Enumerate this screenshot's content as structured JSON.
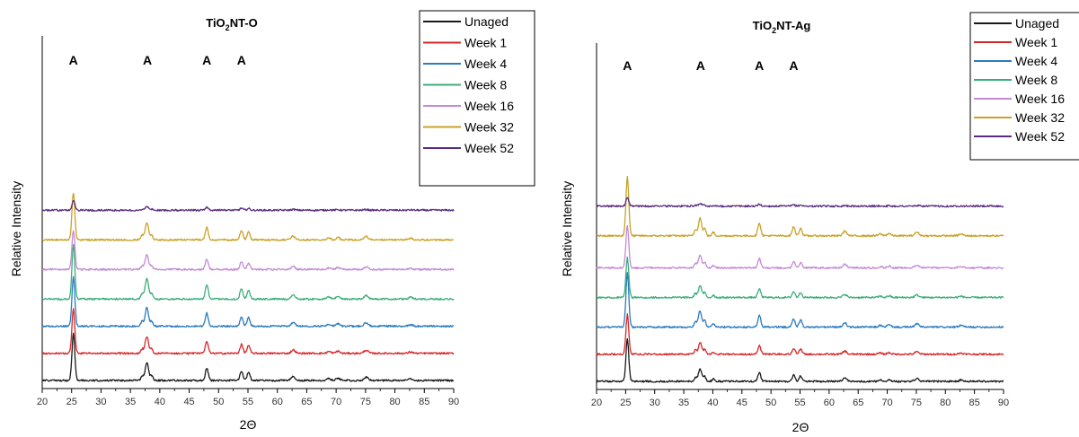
{
  "chart_data": [
    {
      "type": "line",
      "title": {
        "main": "TiO",
        "sub": "2",
        "rest": "NT-O"
      },
      "xlabel": "2Θ",
      "ylabel": "Relative Intensity",
      "xlim": [
        20,
        90
      ],
      "xticks": [
        20,
        25,
        30,
        35,
        40,
        45,
        50,
        55,
        60,
        65,
        70,
        75,
        80,
        85,
        90
      ],
      "grid": false,
      "legend_position": "top-right",
      "peak_labels": [
        {
          "text": "A",
          "x": 25.3
        },
        {
          "text": "A",
          "x": 37.9
        },
        {
          "text": "A",
          "x": 48.0
        },
        {
          "text": "A",
          "x": 53.9
        }
      ],
      "peaks": [
        {
          "x": 25.3,
          "h": 1.0,
          "w": 0.35
        },
        {
          "x": 37.0,
          "h": 0.1,
          "w": 0.3
        },
        {
          "x": 37.8,
          "h": 0.38,
          "w": 0.4
        },
        {
          "x": 38.6,
          "h": 0.1,
          "w": 0.3
        },
        {
          "x": 48.0,
          "h": 0.26,
          "w": 0.35
        },
        {
          "x": 53.9,
          "h": 0.2,
          "w": 0.35
        },
        {
          "x": 55.1,
          "h": 0.17,
          "w": 0.35
        },
        {
          "x": 62.7,
          "h": 0.08,
          "w": 0.45
        },
        {
          "x": 68.8,
          "h": 0.04,
          "w": 0.45
        },
        {
          "x": 70.3,
          "h": 0.05,
          "w": 0.45
        },
        {
          "x": 75.1,
          "h": 0.07,
          "w": 0.5
        },
        {
          "x": 82.7,
          "h": 0.03,
          "w": 0.5
        }
      ],
      "series": [
        {
          "name": "Unaged",
          "color": "#1a1a1a",
          "offset": 0.0,
          "scale": 0.95
        },
        {
          "name": "Week 1",
          "color": "#d62728",
          "offset": 0.55,
          "scale": 0.9
        },
        {
          "name": "Week 4",
          "color": "#2b7bbf",
          "offset": 1.1,
          "scale": 1.0
        },
        {
          "name": "Week 8",
          "color": "#3cae7a",
          "offset": 1.65,
          "scale": 1.1
        },
        {
          "name": "Week 16",
          "color": "#c58ad6",
          "offset": 2.25,
          "scale": 0.8
        },
        {
          "name": "Week 32",
          "color": "#c9a227",
          "offset": 2.85,
          "scale": 0.95
        },
        {
          "name": "Week 52",
          "color": "#5a2d82",
          "offset": 3.45,
          "scale": 0.2
        }
      ]
    },
    {
      "type": "line",
      "title": {
        "main": "TiO",
        "sub": "2",
        "rest": "NT-Ag"
      },
      "xlabel": "2Θ",
      "ylabel": "Relative Intensity",
      "xlim": [
        20,
        90
      ],
      "xticks": [
        20,
        25,
        30,
        35,
        40,
        45,
        50,
        55,
        60,
        65,
        70,
        75,
        80,
        85,
        90
      ],
      "grid": false,
      "legend_position": "top-right",
      "peak_labels": [
        {
          "text": "A",
          "x": 25.3
        },
        {
          "text": "A",
          "x": 37.9
        },
        {
          "text": "A",
          "x": 48.0
        },
        {
          "text": "A",
          "x": 53.9
        }
      ],
      "peaks": [
        {
          "x": 25.3,
          "h": 1.0,
          "w": 0.35
        },
        {
          "x": 37.0,
          "h": 0.1,
          "w": 0.3
        },
        {
          "x": 37.8,
          "h": 0.3,
          "w": 0.4
        },
        {
          "x": 38.6,
          "h": 0.12,
          "w": 0.3
        },
        {
          "x": 40.1,
          "h": 0.06,
          "w": 0.3
        },
        {
          "x": 48.0,
          "h": 0.22,
          "w": 0.35
        },
        {
          "x": 53.9,
          "h": 0.15,
          "w": 0.35
        },
        {
          "x": 55.1,
          "h": 0.13,
          "w": 0.35
        },
        {
          "x": 62.7,
          "h": 0.08,
          "w": 0.45
        },
        {
          "x": 68.8,
          "h": 0.03,
          "w": 0.45
        },
        {
          "x": 70.3,
          "h": 0.04,
          "w": 0.45
        },
        {
          "x": 75.1,
          "h": 0.06,
          "w": 0.5
        },
        {
          "x": 82.7,
          "h": 0.03,
          "w": 0.5
        }
      ],
      "series": [
        {
          "name": "Unaged",
          "color": "#1a1a1a",
          "offset": 0.0,
          "scale": 0.85
        },
        {
          "name": "Week 1",
          "color": "#d62728",
          "offset": 0.55,
          "scale": 0.8
        },
        {
          "name": "Week 4",
          "color": "#2b7bbf",
          "offset": 1.1,
          "scale": 1.1
        },
        {
          "name": "Week 8",
          "color": "#3cae7a",
          "offset": 1.7,
          "scale": 0.8
        },
        {
          "name": "Week 16",
          "color": "#c58ad6",
          "offset": 2.3,
          "scale": 0.85
        },
        {
          "name": "Week 32",
          "color": "#c9a227",
          "offset": 2.95,
          "scale": 1.2
        },
        {
          "name": "Week 52",
          "color": "#5a2d82",
          "offset": 3.55,
          "scale": 0.18
        }
      ]
    }
  ]
}
